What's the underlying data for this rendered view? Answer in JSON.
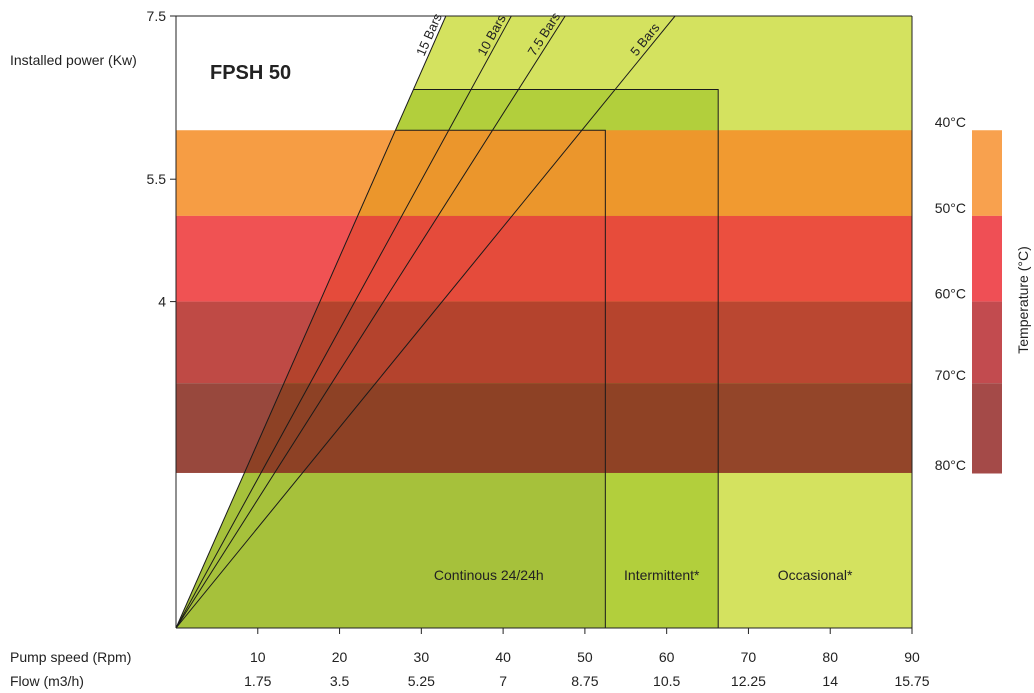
{
  "chart_data": {
    "type": "area",
    "title": "FPSH 50",
    "ylabel": "Installed power (Kw)",
    "ylim": [
      0,
      7.5
    ],
    "y_ticks": [
      {
        "label": "7.5",
        "value": 7.5
      },
      {
        "label": "5.5",
        "value": 5.5
      },
      {
        "label": "4",
        "value": 4
      }
    ],
    "x_rows": [
      {
        "label": "Pump speed (Rpm)",
        "values": [
          "10",
          "20",
          "30",
          "40",
          "50",
          "60",
          "70",
          "80",
          "90"
        ]
      },
      {
        "label": "Flow (m3/h)",
        "values": [
          "1.75",
          "3.5",
          "5.25",
          "7",
          "8.75",
          "10.5",
          "12.25",
          "14",
          "15.75"
        ]
      }
    ],
    "xlim": [
      0,
      90
    ],
    "zones": [
      {
        "label": "Continous 24/24h",
        "x_start": 0,
        "x_end": 52.5,
        "power_top": 6.1,
        "color": "#a6c13b"
      },
      {
        "label": "Intermittent*",
        "x_start": 52.5,
        "x_end": 66.3,
        "power_top": 6.6,
        "color": "#b2cf3c"
      },
      {
        "label": "Occasional*",
        "x_start": 66.3,
        "x_end": 90,
        "power_top": 7.5,
        "color": "#d4e25f"
      }
    ],
    "pressure_lines": [
      {
        "label": "15 Bars",
        "slope_kw_per_rpm": 0.2273
      },
      {
        "label": "10 Bars",
        "slope_kw_per_rpm": 0.1829
      },
      {
        "label": "7.5 Bars",
        "slope_kw_per_rpm": 0.1576
      },
      {
        "label": "5 Bars",
        "slope_kw_per_rpm": 0.1229
      }
    ],
    "temperature_axis_label": "Temperature (°C)",
    "temperature_bands": [
      {
        "label": "40°C",
        "power_top": 6.1,
        "power_bottom": 5.05,
        "color": "#f5902a",
        "legend_color": "#f8a14e"
      },
      {
        "label": "50°C",
        "power_top": 5.05,
        "power_bottom": 4.0,
        "color": "#ee3a3b",
        "legend_color": "#ef4f55"
      },
      {
        "label": "60°C",
        "power_top": 4.0,
        "power_bottom": 3.0,
        "color": "#b6312b",
        "legend_color": "#c24b4f"
      },
      {
        "label": "70°C",
        "power_top": 3.0,
        "power_bottom": 1.9,
        "color": "#8a2f22",
        "legend_color": "#a44a48"
      },
      {
        "label": "80°C",
        "power_bottom": 1.9
      }
    ]
  }
}
